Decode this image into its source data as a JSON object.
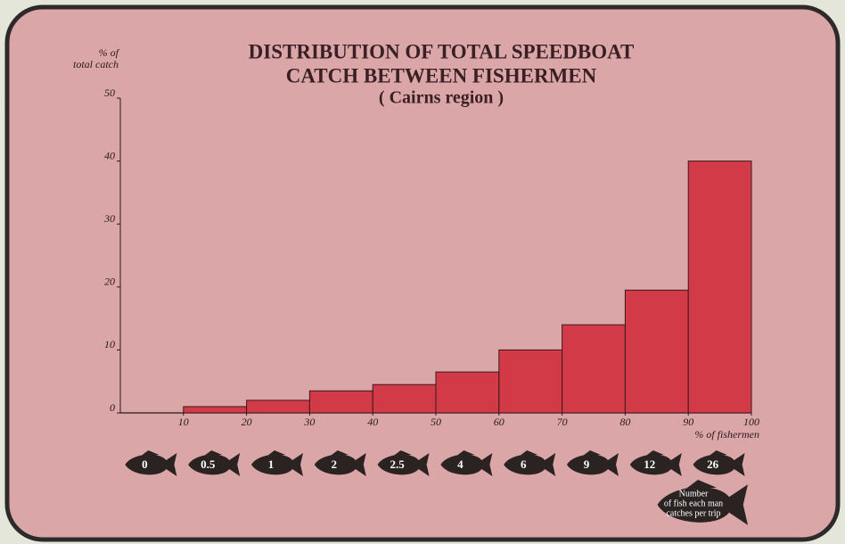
{
  "chart_data": {
    "type": "histogram",
    "title": [
      "DISTRIBUTION OF TOTAL SPEEDBOAT",
      "CATCH BETWEEN FISHERMEN"
    ],
    "subtitle": "( Cairns region )",
    "ylabel": [
      "% of",
      "total catch"
    ],
    "xlabel": "% of fishermen",
    "bins": [
      0,
      10,
      20,
      30,
      40,
      50,
      60,
      70,
      80,
      90,
      100
    ],
    "values": [
      0,
      1,
      2,
      3.5,
      4.5,
      6.5,
      10,
      14,
      19.5,
      40
    ],
    "color": "#d33a48",
    "xlim": [
      0,
      100
    ],
    "xticks": [
      10,
      20,
      30,
      40,
      50,
      60,
      70,
      80,
      90,
      100
    ],
    "ylim": [
      0,
      50
    ],
    "yticks": [
      0,
      10,
      20,
      30,
      40,
      50
    ],
    "fish_labels": [
      0,
      0.5,
      1,
      2,
      2.5,
      4,
      6,
      9,
      12,
      26
    ],
    "fish_note": [
      "Number",
      "of fish each man",
      "catches per trip"
    ]
  }
}
